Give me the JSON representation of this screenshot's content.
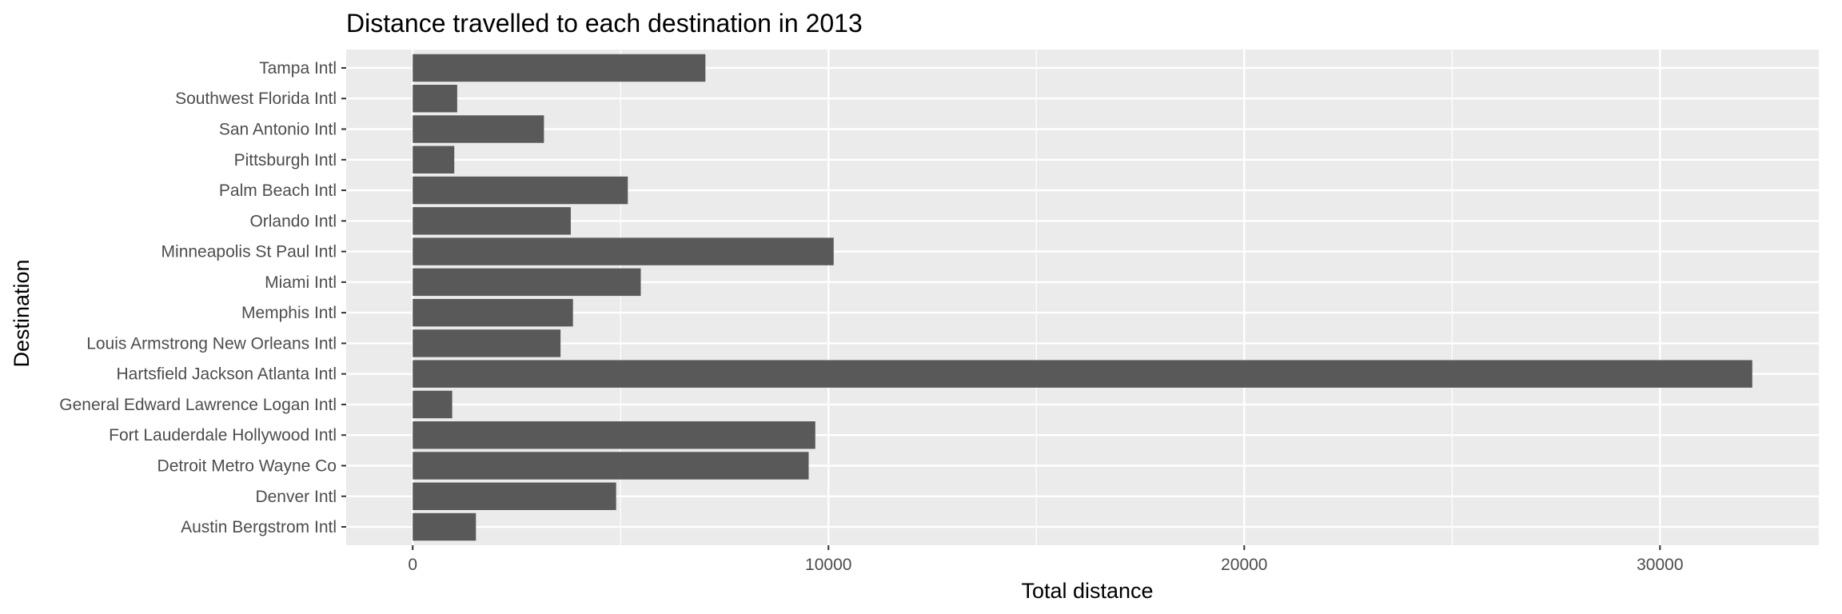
{
  "chart_data": {
    "type": "bar",
    "orientation": "horizontal",
    "title": "Distance travelled to each destination in 2013",
    "xlabel": "Total distance",
    "ylabel": "Destination",
    "categories": [
      "Austin Bergstrom Intl",
      "Denver Intl",
      "Detroit Metro Wayne Co",
      "Fort Lauderdale Hollywood Intl",
      "General Edward Lawrence Logan Intl",
      "Hartsfield Jackson Atlanta Intl",
      "Louis Armstrong New Orleans Intl",
      "Memphis Intl",
      "Miami Intl",
      "Minneapolis St Paul Intl",
      "Orlando Intl",
      "Palm Beach Intl",
      "Pittsburgh Intl",
      "San Antonio Intl",
      "Southwest Florida Intl",
      "Tampa Intl"
    ],
    "values": [
      1521,
      4893,
      9524,
      9683,
      950,
      32220,
      3556,
      3855,
      5486,
      10125,
      3802,
      5174,
      1000,
      3157,
      1070,
      7040
    ],
    "xlim": [
      -1600,
      33820
    ],
    "xticks": [
      0,
      10000,
      20000,
      30000
    ],
    "grid": true,
    "legend": "none",
    "colors": {
      "bar": "#595959",
      "panel": "#ebebeb",
      "grid_major": "#ffffff",
      "tick_text": "#4d4d4d",
      "title_text": "#000000"
    }
  }
}
